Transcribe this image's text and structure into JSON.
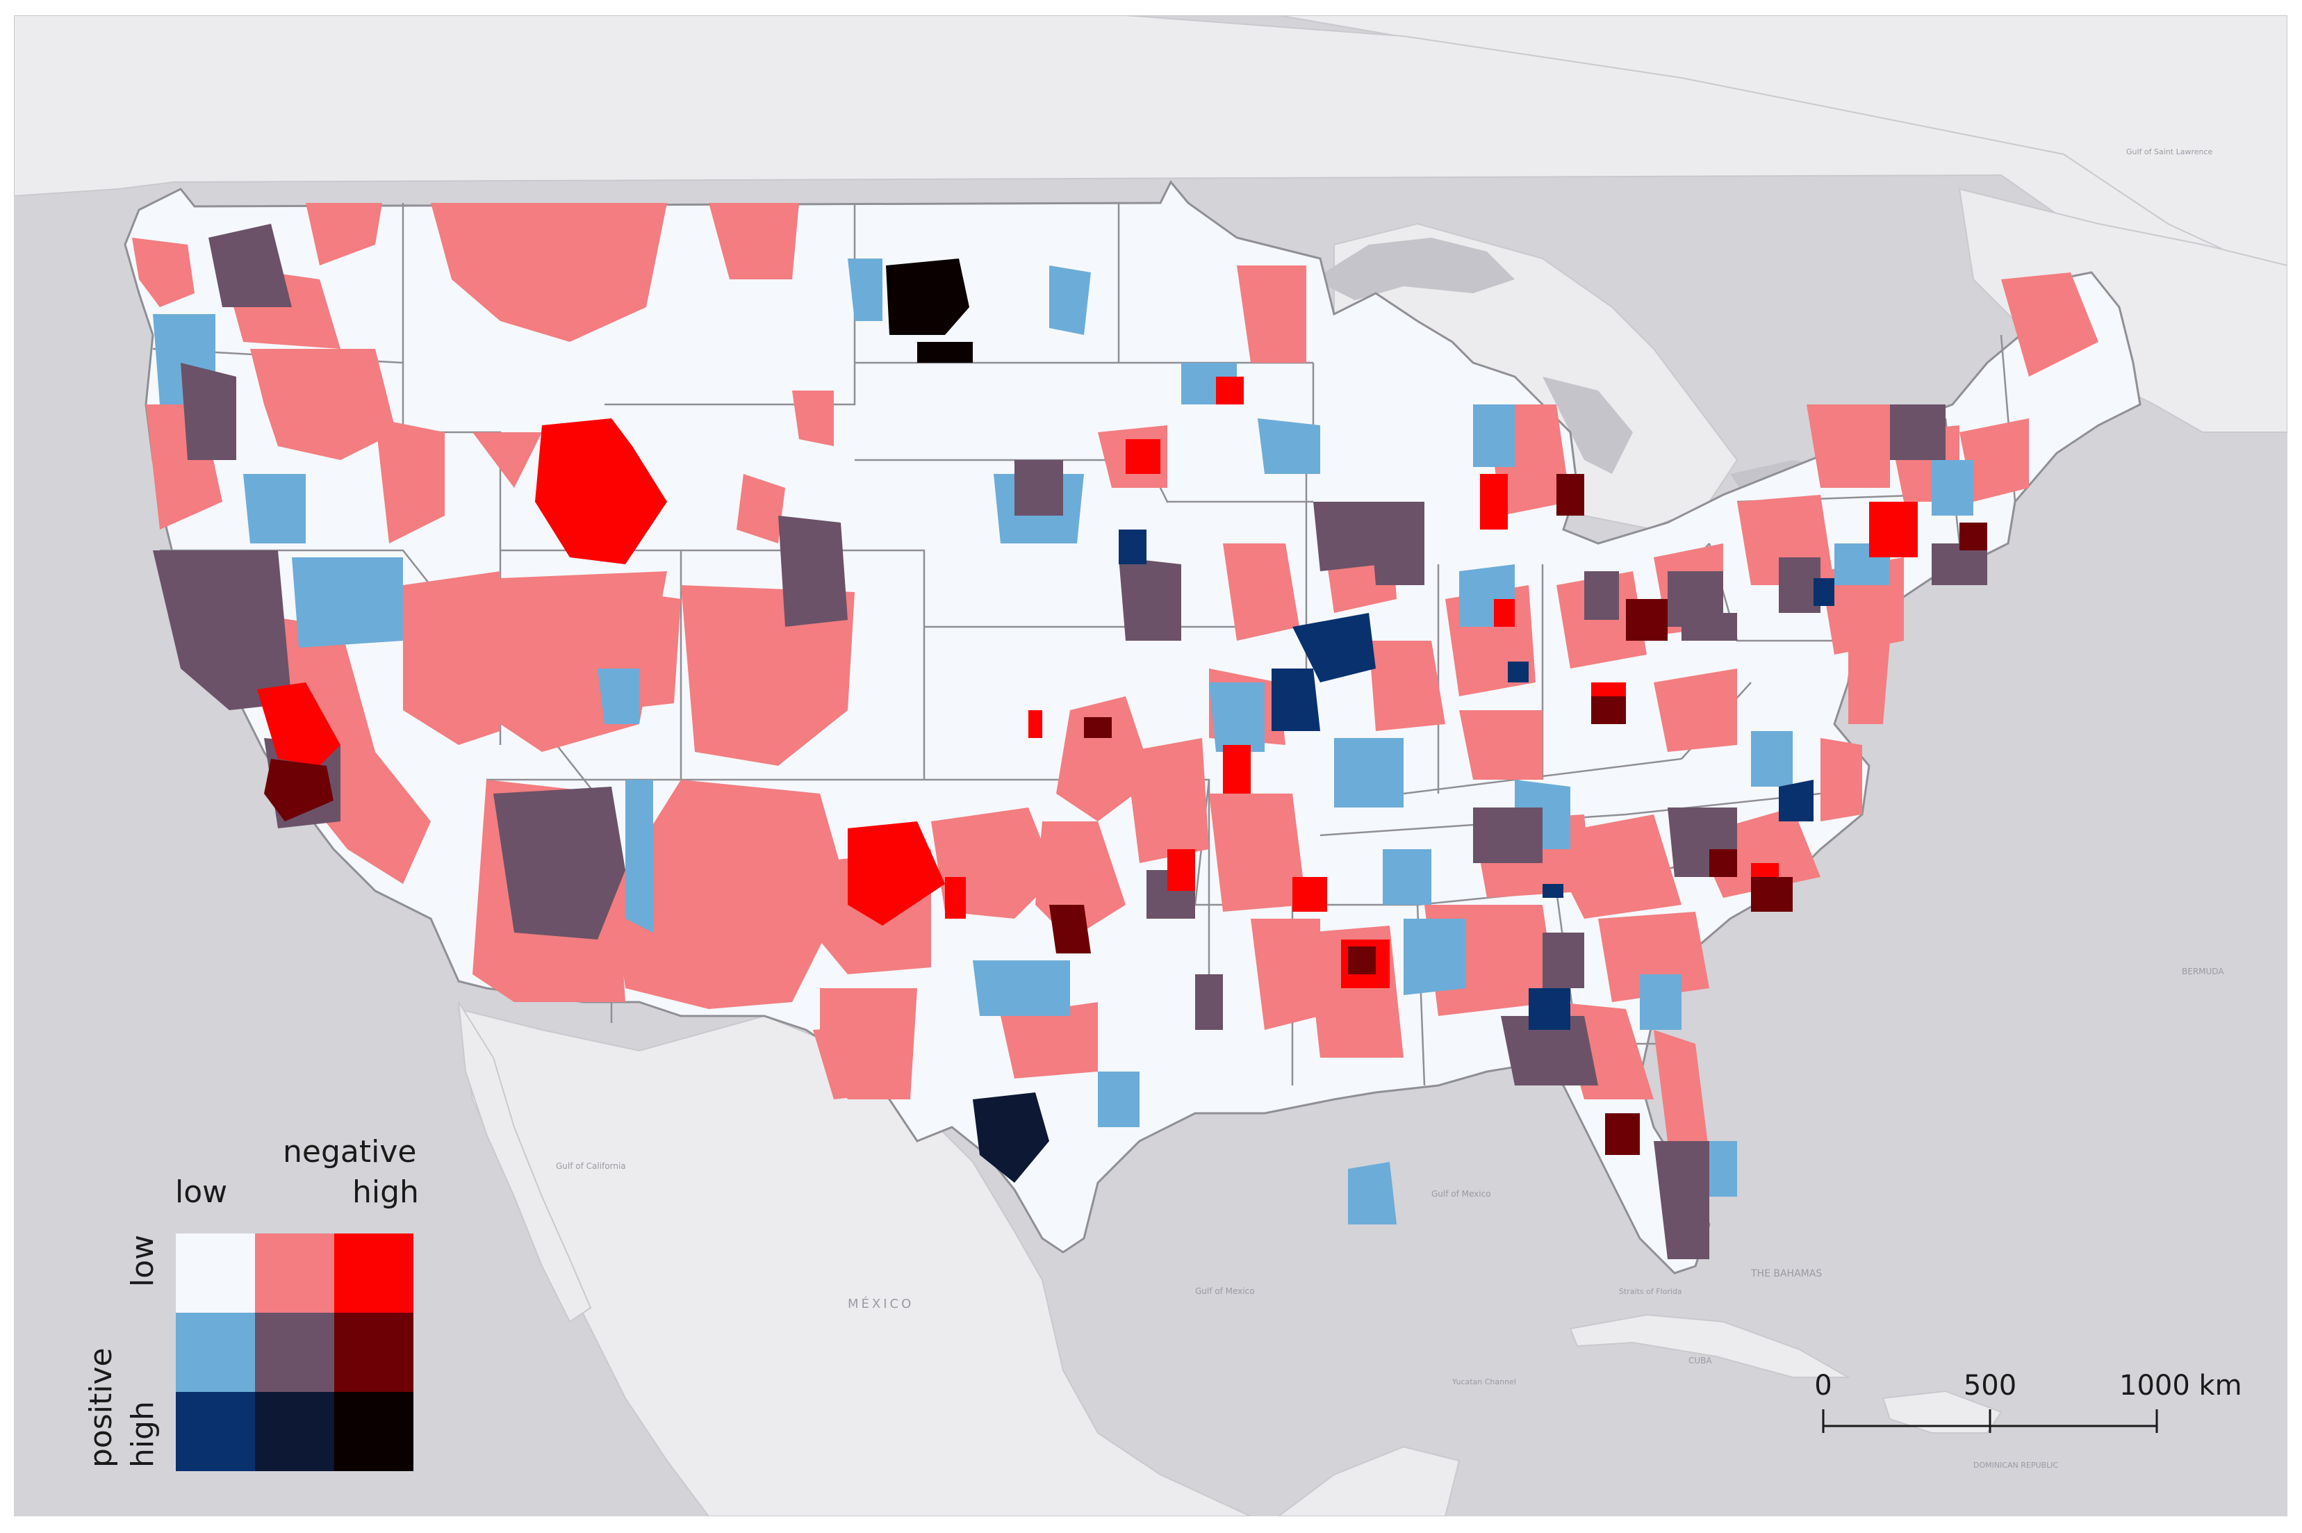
{
  "legend": {
    "negative_title": "negative",
    "positive_title": "positive",
    "col_low": "low",
    "col_high": "high",
    "row_low": "low",
    "row_high": "high",
    "colors": [
      [
        "#f5f8fc",
        "#f37d80",
        "#fd0000"
      ],
      [
        "#6cacd8",
        "#6b5268",
        "#6c0005"
      ],
      [
        "#08316e",
        "#0c1834",
        "#0a0000"
      ]
    ]
  },
  "scale_bar": {
    "labels": [
      "0",
      "500",
      "1000 km"
    ]
  },
  "base_labels": {
    "mexico": "MÉXICO",
    "gulf_california": "Gulf of California",
    "gulf_mexico": "Gulf of Mexico",
    "gulf_mexico_2": "Gulf of Mexico",
    "bahamas": "THE BAHAMAS",
    "bermuda": "BERMUDA",
    "cuba": "CUBA",
    "dominican": "DOMINICAN REPUBLIC",
    "st_lawrence": "Gulf of Saint Lawrence",
    "straits_florida": "Straits of Florida",
    "yucatan": "Yucatan Channel"
  }
}
